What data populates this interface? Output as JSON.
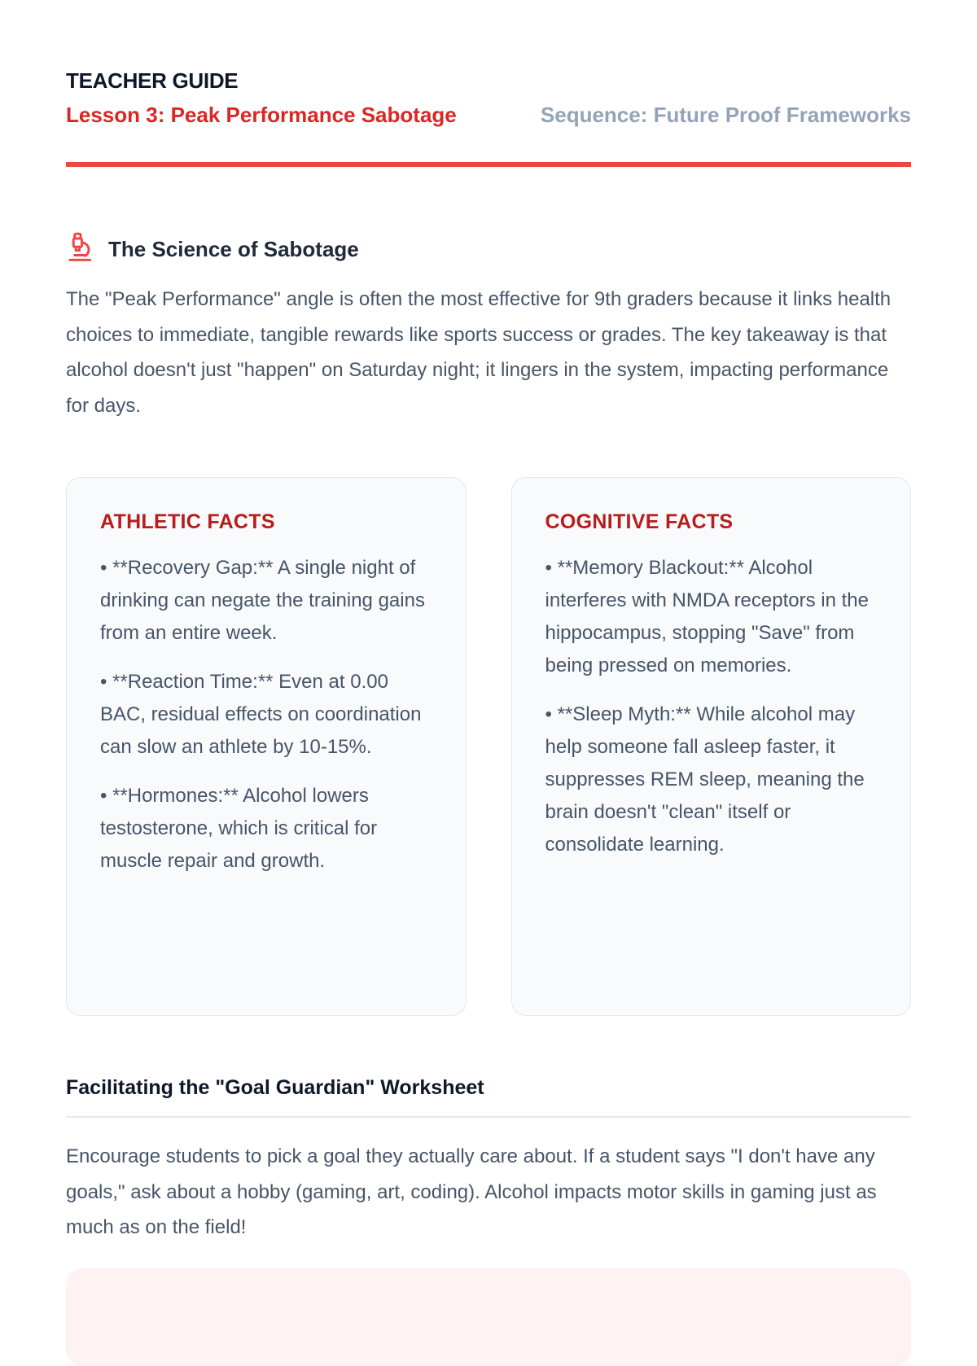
{
  "header": {
    "title": "TEACHER GUIDE",
    "lesson": "Lesson 3: Peak Performance Sabotage",
    "sequence": "Sequence: Future Proof Frameworks"
  },
  "colors": {
    "accent": "#ef4444",
    "lesson": "#dc2626",
    "card_title": "#b91c1c",
    "muted": "#94a3b8"
  },
  "science": {
    "icon": "microscope-icon",
    "heading": "The Science of Sabotage",
    "body": "The \"Peak Performance\" angle is often the most effective for 9th graders because it links health choices to immediate, tangible rewards like sports success or grades. The key takeaway is that alcohol doesn't just \"happen\" on Saturday night; it lingers in the system, impacting performance for days."
  },
  "cards": [
    {
      "title": "ATHLETIC FACTS",
      "items": [
        "• **Recovery Gap:** A single night of drinking can negate the training gains from an entire week.",
        "• **Reaction Time:** Even at 0.00 BAC, residual effects on coordination can slow an athlete by 10-15%.",
        "• **Hormones:** Alcohol lowers testosterone, which is critical for muscle repair and growth."
      ]
    },
    {
      "title": "COGNITIVE FACTS",
      "items": [
        "• **Memory Blackout:** Alcohol interferes with NMDA receptors in the hippocampus, stopping \"Save\" from being pressed on memories.",
        "• **Sleep Myth:** While alcohol may help someone fall asleep faster, it suppresses REM sleep, meaning the brain doesn't \"clean\" itself or consolidate learning."
      ]
    }
  ],
  "worksheet": {
    "heading": "Facilitating the \"Goal Guardian\" Worksheet",
    "body": "Encourage students to pick a goal they actually care about. If a student says \"I don't have any goals,\" ask about a hobby (gaming, art, coding). Alcohol impacts motor skills in gaming just as much as on the field!"
  }
}
